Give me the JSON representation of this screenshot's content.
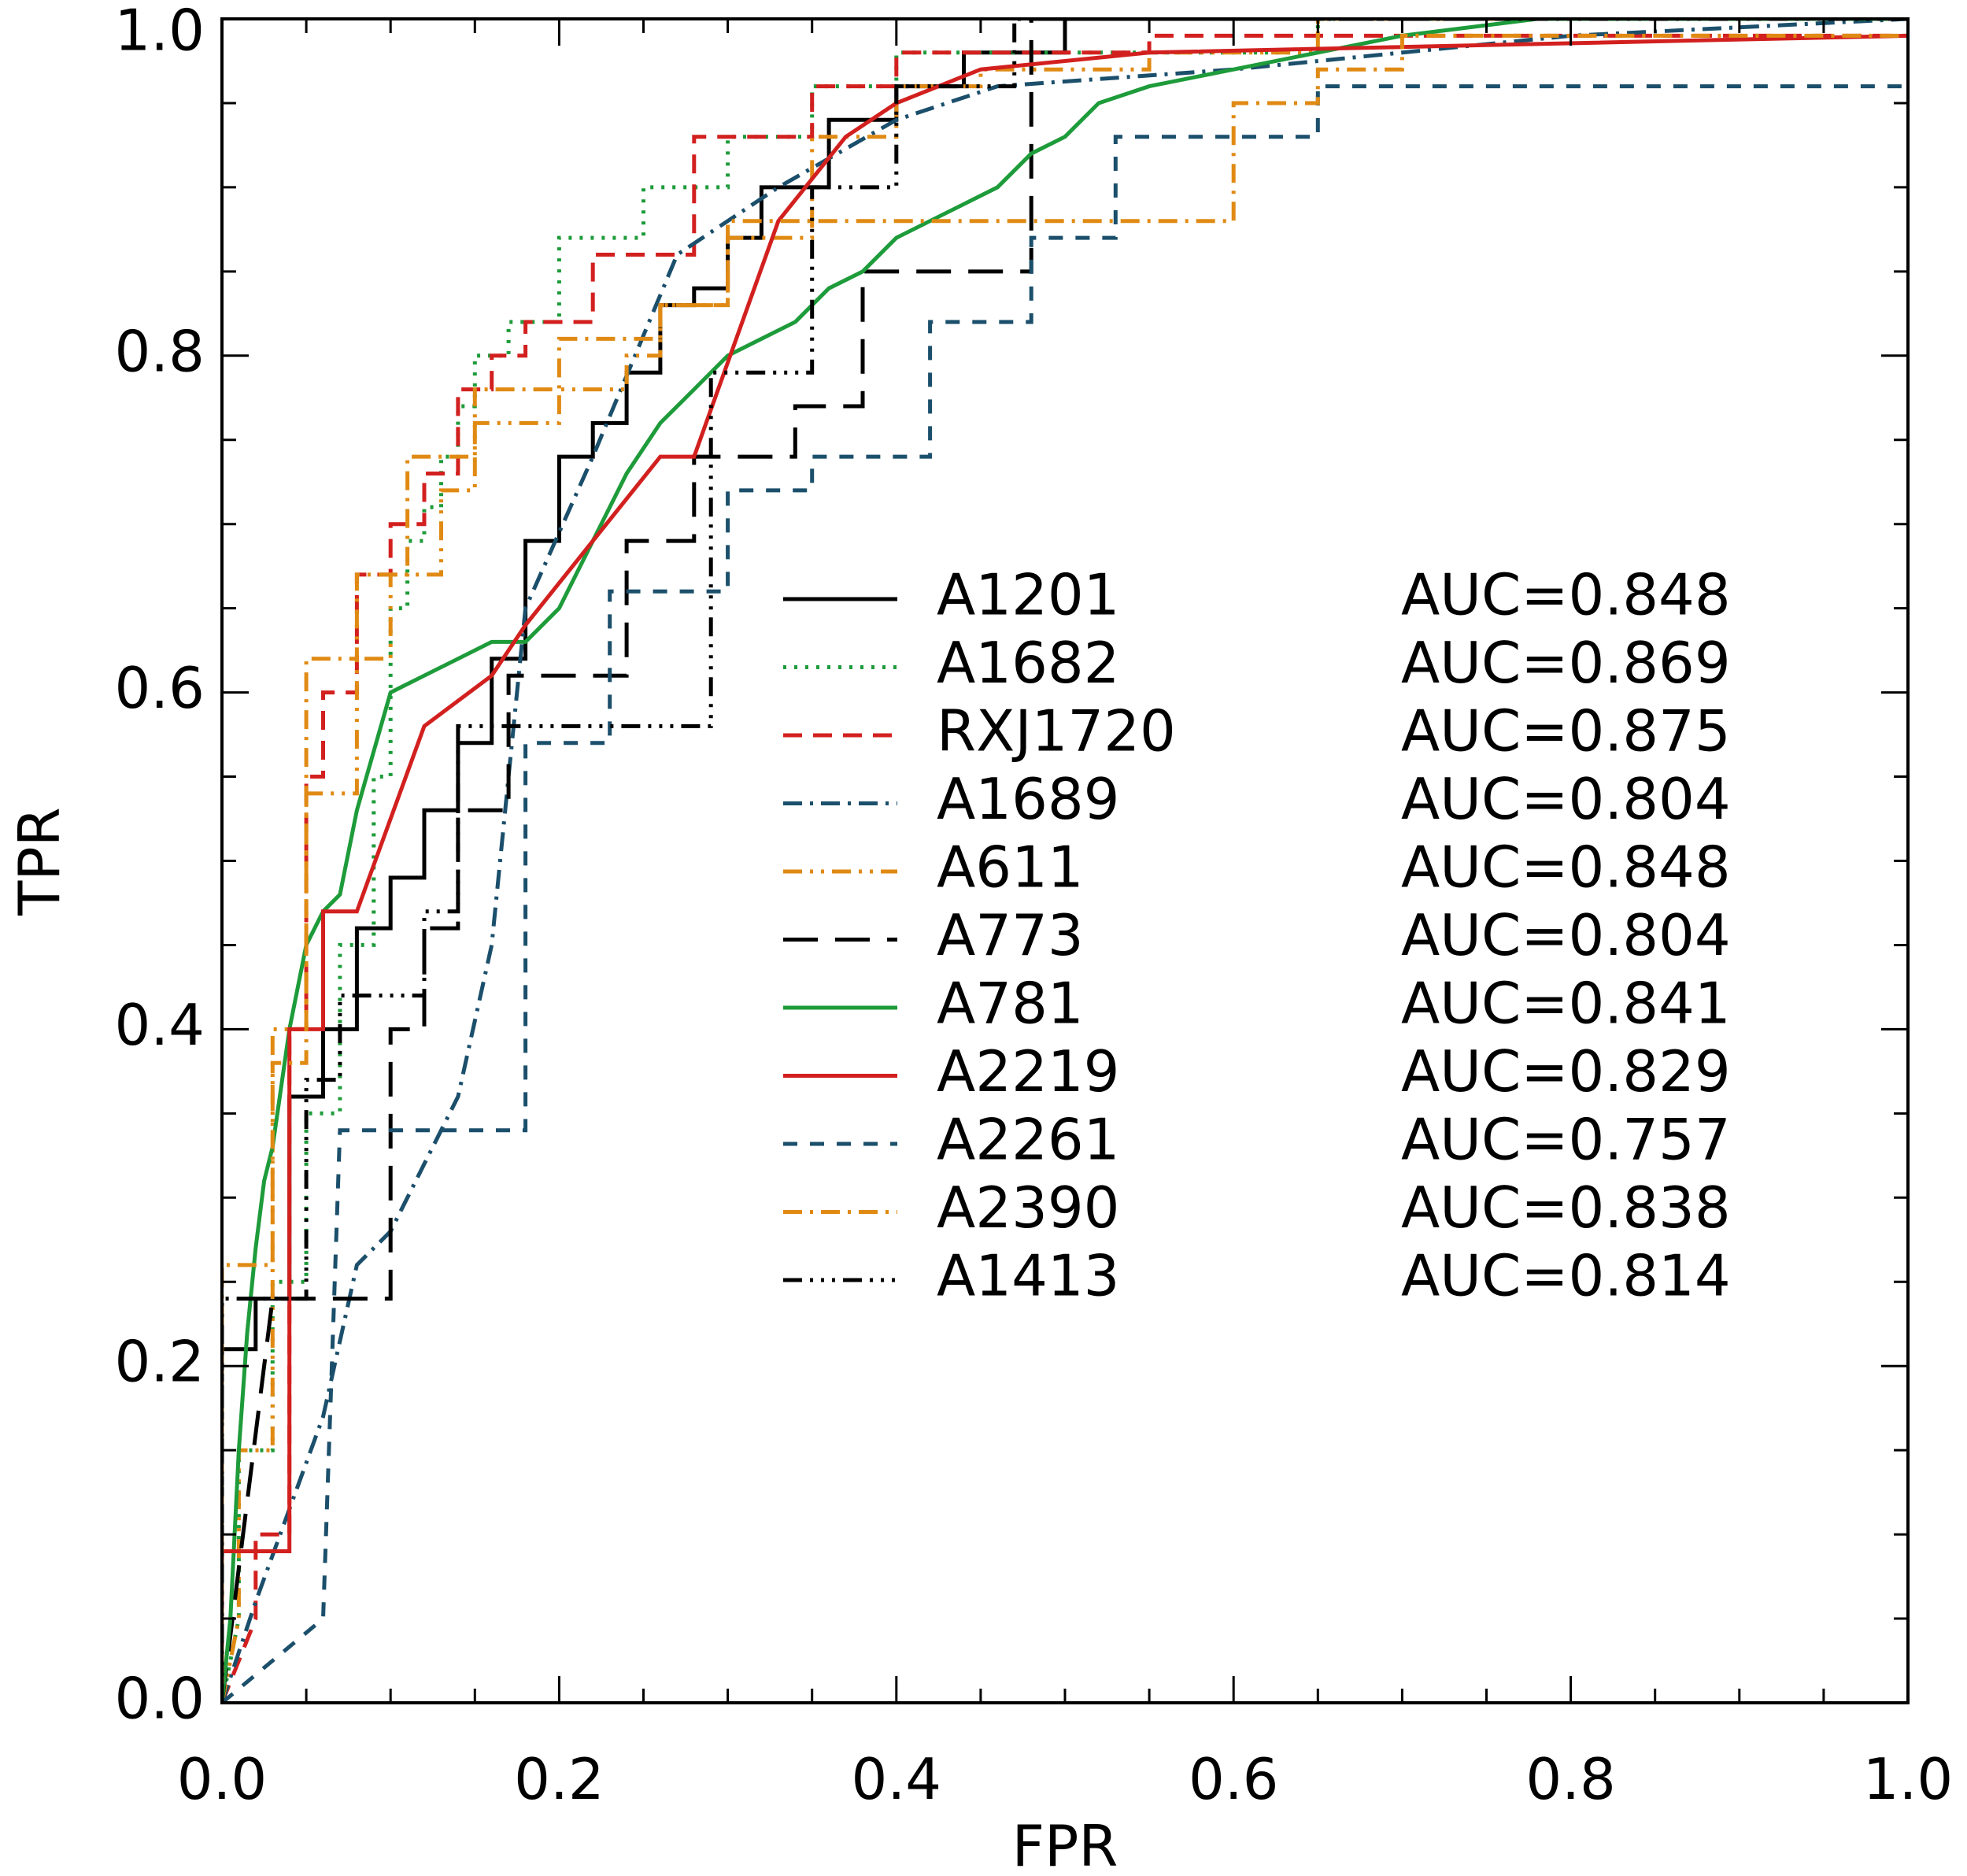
{
  "chart_data": {
    "type": "line",
    "title": "",
    "xlabel": "FPR",
    "ylabel": "TPR",
    "xlim": [
      0.0,
      1.0
    ],
    "ylim": [
      0.0,
      1.0
    ],
    "grid": false,
    "legend_position": "center-right",
    "x_ticks": [
      "0.0",
      "0.2",
      "0.4",
      "0.6",
      "0.8",
      "1.0"
    ],
    "y_ticks": [
      "0.0",
      "0.2",
      "0.4",
      "0.6",
      "0.8",
      "1.0"
    ],
    "series": [
      {
        "name": "A1201",
        "auc": "AUC=0.848",
        "color": "#000000",
        "dash": "solid",
        "x": [
          0,
          0,
          0.02,
          0.02,
          0.04,
          0.04,
          0.06,
          0.06,
          0.08,
          0.08,
          0.1,
          0.1,
          0.12,
          0.12,
          0.14,
          0.14,
          0.16,
          0.16,
          0.18,
          0.18,
          0.2,
          0.2,
          0.22,
          0.22,
          0.24,
          0.24,
          0.26,
          0.26,
          0.28,
          0.28,
          0.3,
          0.3,
          0.32,
          0.32,
          0.36,
          0.36,
          0.4,
          0.4,
          0.44,
          0.44,
          0.5,
          0.5,
          1.0
        ],
        "y": [
          0,
          0.21,
          0.21,
          0.24,
          0.24,
          0.36,
          0.36,
          0.4,
          0.4,
          0.46,
          0.46,
          0.49,
          0.49,
          0.53,
          0.53,
          0.57,
          0.57,
          0.62,
          0.62,
          0.69,
          0.69,
          0.74,
          0.74,
          0.76,
          0.76,
          0.79,
          0.79,
          0.83,
          0.83,
          0.84,
          0.84,
          0.87,
          0.87,
          0.9,
          0.9,
          0.94,
          0.94,
          0.96,
          0.96,
          0.98,
          0.98,
          1.0,
          1.0
        ]
      },
      {
        "name": "A1682",
        "auc": "AUC=0.869",
        "color": "#1e9b3a",
        "dash": "dotted",
        "x": [
          0,
          0.01,
          0.01,
          0.03,
          0.03,
          0.05,
          0.05,
          0.07,
          0.07,
          0.09,
          0.09,
          0.1,
          0.1,
          0.11,
          0.11,
          0.12,
          0.12,
          0.13,
          0.13,
          0.14,
          0.14,
          0.15,
          0.15,
          0.17,
          0.17,
          0.2,
          0.2,
          0.25,
          0.25,
          0.3,
          0.3,
          0.35,
          0.35,
          0.4,
          0.4,
          0.65,
          0.65,
          1.0
        ],
        "y": [
          0,
          0.05,
          0.15,
          0.15,
          0.25,
          0.25,
          0.35,
          0.35,
          0.45,
          0.45,
          0.55,
          0.55,
          0.65,
          0.65,
          0.69,
          0.69,
          0.71,
          0.71,
          0.74,
          0.74,
          0.77,
          0.77,
          0.8,
          0.8,
          0.82,
          0.82,
          0.87,
          0.87,
          0.9,
          0.9,
          0.93,
          0.93,
          0.96,
          0.96,
          0.98,
          0.98,
          1.0,
          1.0
        ]
      },
      {
        "name": "RXJ1720",
        "auc": "AUC=0.875",
        "color": "#d2201f",
        "dash": "dashed",
        "x": [
          0,
          0.02,
          0.02,
          0.04,
          0.04,
          0.05,
          0.05,
          0.06,
          0.06,
          0.08,
          0.08,
          0.1,
          0.1,
          0.12,
          0.12,
          0.14,
          0.14,
          0.16,
          0.16,
          0.18,
          0.18,
          0.22,
          0.22,
          0.28,
          0.28,
          0.35,
          0.35,
          0.4,
          0.4,
          0.55,
          0.55,
          1.0
        ],
        "y": [
          0,
          0.05,
          0.1,
          0.1,
          0.4,
          0.4,
          0.55,
          0.55,
          0.6,
          0.6,
          0.67,
          0.67,
          0.7,
          0.7,
          0.73,
          0.73,
          0.78,
          0.78,
          0.8,
          0.8,
          0.82,
          0.82,
          0.86,
          0.86,
          0.93,
          0.93,
          0.96,
          0.96,
          0.98,
          0.98,
          0.99,
          0.99
        ]
      },
      {
        "name": "A1689",
        "auc": "AUC=0.804",
        "color": "#1b4f6b",
        "dash": "dashdot",
        "x": [
          0,
          0.02,
          0.02,
          0.06,
          0.06,
          0.08,
          0.08,
          0.1,
          0.1,
          0.12,
          0.12,
          0.14,
          0.14,
          0.16,
          0.16,
          0.17,
          0.17,
          0.18,
          0.18,
          0.22,
          0.22,
          0.27,
          0.27,
          0.33,
          0.33,
          0.4,
          0.4,
          0.46,
          0.46,
          0.6,
          0.6,
          0.8,
          0.8,
          1.0
        ],
        "y": [
          0,
          0.06,
          0.06,
          0.17,
          0.17,
          0.26,
          0.26,
          0.28,
          0.28,
          0.32,
          0.32,
          0.36,
          0.36,
          0.45,
          0.45,
          0.55,
          0.55,
          0.65,
          0.65,
          0.74,
          0.74,
          0.86,
          0.86,
          0.9,
          0.9,
          0.94,
          0.94,
          0.96,
          0.96,
          0.97,
          0.97,
          0.99,
          0.99,
          1.0
        ]
      },
      {
        "name": "A611",
        "auc": "AUC=0.848",
        "color": "#e08a14",
        "dash": "dashdotdot",
        "x": [
          0,
          0.01,
          0.01,
          0.03,
          0.03,
          0.05,
          0.05,
          0.08,
          0.08,
          0.1,
          0.1,
          0.13,
          0.13,
          0.15,
          0.15,
          0.2,
          0.2,
          0.24,
          0.24,
          0.26,
          0.26,
          0.3,
          0.3,
          0.35,
          0.35,
          0.4,
          0.4,
          0.45,
          0.45,
          0.55,
          0.55,
          0.65,
          0.65,
          1.0
        ],
        "y": [
          0,
          0.05,
          0.15,
          0.15,
          0.4,
          0.4,
          0.54,
          0.54,
          0.62,
          0.62,
          0.67,
          0.67,
          0.72,
          0.72,
          0.76,
          0.76,
          0.78,
          0.78,
          0.8,
          0.8,
          0.83,
          0.83,
          0.87,
          0.87,
          0.93,
          0.93,
          0.96,
          0.96,
          0.97,
          0.97,
          0.98,
          0.98,
          1.0,
          1.0
        ]
      },
      {
        "name": "A773",
        "auc": "AUC=0.804",
        "color": "#000000",
        "dash": "longdash",
        "x": [
          0,
          0.03,
          0.03,
          0.1,
          0.1,
          0.12,
          0.12,
          0.14,
          0.14,
          0.17,
          0.17,
          0.24,
          0.24,
          0.28,
          0.28,
          0.34,
          0.34,
          0.38,
          0.38,
          0.41,
          0.41,
          0.48,
          0.48,
          1.0
        ],
        "y": [
          0,
          0.24,
          0.24,
          0.24,
          0.4,
          0.4,
          0.46,
          0.46,
          0.53,
          0.53,
          0.61,
          0.61,
          0.69,
          0.69,
          0.74,
          0.74,
          0.77,
          0.77,
          0.85,
          0.85,
          0.85,
          0.85,
          1.0,
          1.0
        ]
      },
      {
        "name": "A781",
        "auc": "AUC=0.841",
        "color": "#1e9b3a",
        "dash": "solid",
        "x": [
          0,
          0.005,
          0.01,
          0.015,
          0.02,
          0.025,
          0.03,
          0.04,
          0.05,
          0.06,
          0.07,
          0.08,
          0.1,
          0.12,
          0.14,
          0.16,
          0.18,
          0.2,
          0.22,
          0.24,
          0.26,
          0.28,
          0.3,
          0.32,
          0.34,
          0.36,
          0.38,
          0.4,
          0.42,
          0.44,
          0.46,
          0.48,
          0.5,
          0.52,
          0.55,
          0.6,
          0.7,
          0.78,
          1.0
        ],
        "y": [
          0,
          0.05,
          0.15,
          0.22,
          0.27,
          0.31,
          0.33,
          0.4,
          0.45,
          0.47,
          0.48,
          0.53,
          0.6,
          0.61,
          0.62,
          0.63,
          0.63,
          0.65,
          0.69,
          0.73,
          0.76,
          0.78,
          0.8,
          0.81,
          0.82,
          0.84,
          0.85,
          0.87,
          0.88,
          0.89,
          0.9,
          0.92,
          0.93,
          0.95,
          0.96,
          0.97,
          0.99,
          1.0,
          1.0
        ]
      },
      {
        "name": "A2219",
        "auc": "AUC=0.829",
        "color": "#d2201f",
        "dash": "solid",
        "x": [
          0,
          0,
          0.04,
          0.04,
          0.06,
          0.06,
          0.08,
          0.08,
          0.12,
          0.12,
          0.16,
          0.16,
          0.18,
          0.18,
          0.26,
          0.26,
          0.28,
          0.28,
          0.33,
          0.33,
          0.37,
          0.37,
          0.4,
          0.4,
          0.45,
          0.45,
          0.55,
          0.55,
          1.0,
          1.0
        ],
        "y": [
          0,
          0.09,
          0.09,
          0.4,
          0.4,
          0.47,
          0.47,
          0.47,
          0.58,
          0.58,
          0.61,
          0.61,
          0.64,
          0.64,
          0.74,
          0.74,
          0.74,
          0.74,
          0.88,
          0.88,
          0.93,
          0.93,
          0.95,
          0.95,
          0.97,
          0.97,
          0.98,
          0.98,
          0.99,
          0.99
        ]
      },
      {
        "name": "A2261",
        "auc": "AUC=0.757",
        "color": "#1b4f6b",
        "dash": "shortdash",
        "x": [
          0,
          0.06,
          0.06,
          0.07,
          0.07,
          0.18,
          0.18,
          0.23,
          0.23,
          0.3,
          0.3,
          0.35,
          0.35,
          0.42,
          0.42,
          0.48,
          0.48,
          0.53,
          0.53,
          0.65,
          0.65,
          1.0
        ],
        "y": [
          0,
          0.05,
          0.05,
          0.34,
          0.34,
          0.34,
          0.57,
          0.57,
          0.66,
          0.66,
          0.72,
          0.72,
          0.74,
          0.74,
          0.82,
          0.82,
          0.87,
          0.87,
          0.93,
          0.93,
          0.96,
          0.96
        ]
      },
      {
        "name": "A2390",
        "auc": "AUC=0.838",
        "color": "#e08a14",
        "dash": "dashdot",
        "x": [
          0,
          0,
          0.03,
          0.03,
          0.05,
          0.05,
          0.08,
          0.08,
          0.11,
          0.11,
          0.15,
          0.15,
          0.2,
          0.2,
          0.26,
          0.26,
          0.3,
          0.3,
          0.35,
          0.35,
          0.6,
          0.6,
          0.65,
          0.65,
          0.7,
          0.7,
          1.0
        ],
        "y": [
          0,
          0.26,
          0.26,
          0.38,
          0.38,
          0.62,
          0.62,
          0.67,
          0.67,
          0.74,
          0.74,
          0.78,
          0.78,
          0.81,
          0.81,
          0.83,
          0.83,
          0.88,
          0.88,
          0.88,
          0.88,
          0.95,
          0.95,
          0.97,
          0.97,
          0.99,
          0.99
        ]
      },
      {
        "name": "A1413",
        "auc": "AUC=0.814",
        "color": "#000000",
        "dash": "dashdotdotdot",
        "x": [
          0,
          0,
          0.05,
          0.05,
          0.07,
          0.07,
          0.12,
          0.12,
          0.14,
          0.14,
          0.17,
          0.17,
          0.29,
          0.29,
          0.35,
          0.35,
          0.4,
          0.4,
          0.47,
          0.47,
          1.0
        ],
        "y": [
          0,
          0.24,
          0.24,
          0.37,
          0.37,
          0.42,
          0.42,
          0.47,
          0.47,
          0.58,
          0.58,
          0.58,
          0.58,
          0.79,
          0.79,
          0.9,
          0.9,
          0.96,
          0.96,
          1.0,
          1.0
        ]
      }
    ]
  }
}
